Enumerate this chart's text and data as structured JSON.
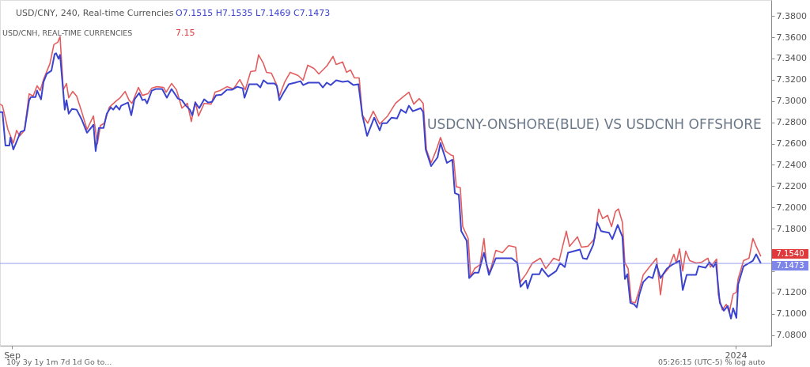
{
  "chart_data": {
    "type": "line",
    "title": "USD/CNY, 240, Real-time Currencies",
    "subtitle": "USD/CNH, REAL-TIME CURRENCIES",
    "annotations": [
      "O7.1515 H7.1535 L7.1469 C7.1473",
      "7.15",
      "USDCNY-ONSHORE(BLUE) VS USDCNH OFFSHORE",
      "10y    3y    1y    1m    7d    1d    Go to...",
      "05:26:15 (UTC-5)     %     log     auto",
      {
        "text": "7.1540",
        "x": "2024-01-05T06:00",
        "y": 7.154
      }
    ],
    "ref_lines": [
      {
        "axis": "y",
        "value": 7.1473,
        "label": "7.1473",
        "color": "#7f86ea"
      }
    ],
    "series": [
      {
        "color": "#e35d5f",
        "x": [
          "2023-08-30T00:00",
          "2023-08-30T10:00",
          "2023-08-31T08:00",
          "2023-09-01T06:00",
          "2023-09-01T19:00",
          "2023-09-02T08:00",
          "2023-09-03T03:00",
          "2023-09-03T22:00",
          "2023-09-04T14:00",
          "2023-09-05T06:00",
          "2023-09-05T19:00",
          "2023-09-06T08:00",
          "2023-09-07T10:00",
          "2023-09-08T02:00",
          "2023-09-08T18:00",
          "2023-09-09T03:00",
          "2023-09-09T16:00",
          "2023-09-10T05:00",
          "2023-09-10T14:00",
          "2023-09-11T06:00",
          "2023-09-11T22:00",
          "2023-09-12T18:00",
          "2023-09-13T16:00",
          "2023-09-14T18:00",
          "2023-09-15T10:00",
          "2023-09-15T22:00",
          "2023-09-16T14:00",
          "2023-09-17T10:00",
          "2023-09-18T14:00",
          "2023-09-19T06:00",
          "2023-09-20T02:00",
          "2023-09-20T18:00",
          "2023-09-21T06:00",
          "2023-09-22T08:00",
          "2023-09-23T00:00",
          "2023-09-23T22:00",
          "2023-09-24T14:00",
          "2023-09-25T10:00",
          "2023-09-26T14:00",
          "2023-09-27T00:00",
          "2023-09-27T22:00",
          "2023-09-28T18:00",
          "2023-09-29T16:00",
          "2023-09-30T14:00",
          "2023-10-01T06:00",
          "2023-10-01T22:00",
          "2023-10-02T11:00",
          "2023-10-03T10:00",
          "2023-10-04T14:00",
          "2023-10-05T06:00",
          "2023-10-06T02:00",
          "2023-10-07T06:00",
          "2023-10-08T08:00",
          "2023-10-09T10:00",
          "2023-10-10T08:00",
          "2023-10-11T06:00",
          "2023-10-12T02:00",
          "2023-10-12T14:00",
          "2023-10-13T10:00",
          "2023-10-13T22:00",
          "2023-10-14T18:00",
          "2023-10-15T13:00",
          "2023-10-16T02:00",
          "2023-10-17T00:00",
          "2023-10-17T22:00",
          "2023-10-19T06:00",
          "2023-10-20T02:00",
          "2023-10-20T21:00",
          "2023-10-21T22:00",
          "2023-10-22T18:00",
          "2023-10-24T02:00",
          "2023-10-25T03:00",
          "2023-10-25T16:00",
          "2023-10-26T18:00",
          "2023-10-27T10:00",
          "2023-10-28T02:00",
          "2023-10-28T18:00",
          "2023-10-29T13:00",
          "2023-10-30T02:00",
          "2023-10-31T00:00",
          "2023-10-31T22:00",
          "2023-11-02T00:00",
          "2023-11-03T08:00",
          "2023-11-04T16:00",
          "2023-11-05T18:00",
          "2023-11-06T22:00",
          "2023-11-07T18:00",
          "2023-11-08T16:00",
          "2023-11-09T08:00",
          "2023-11-09T21:00",
          "2023-11-10T16:00",
          "2023-11-11T14:00",
          "2023-11-12T06:00",
          "2023-11-13T02:00",
          "2023-11-14T00:00",
          "2023-11-14T10:00",
          "2023-11-14T22:00",
          "2023-11-15T14:00",
          "2023-11-16T00:00",
          "2023-11-16T22:00",
          "2023-11-17T08:00",
          "2023-11-18T00:00",
          "2023-11-18T22:00",
          "2023-11-19T14:00",
          "2023-11-20T00:00",
          "2023-11-20T13:00",
          "2023-11-21T14:00",
          "2023-11-22T16:00",
          "2023-11-23T18:00",
          "2023-11-24T22:00",
          "2023-11-25T14:00",
          "2023-11-26T16:00",
          "2023-11-27T18:00",
          "2023-11-29T02:00",
          "2023-11-30T00:00",
          "2023-12-01T08:00",
          "2023-12-02T06:00",
          "2023-12-03T11:00",
          "2023-12-04T00:00",
          "2023-12-05T08:00",
          "2023-12-06T00:00",
          "2023-12-07T02:00",
          "2023-12-08T06:00",
          "2023-12-08T22:00",
          "2023-12-09T14:00",
          "2023-12-10T10:00",
          "2023-12-11T02:00",
          "2023-12-11T18:00",
          "2023-12-12T06:00",
          "2023-12-12T22:00",
          "2023-12-13T08:00",
          "2023-12-13T21:00",
          "2023-12-14T10:00",
          "2023-12-15T02:00",
          "2023-12-15T18:00",
          "2023-12-16T10:00",
          "2023-12-17T14:00",
          "2023-12-18T16:00",
          "2023-12-19T08:00",
          "2023-12-19T18:00",
          "2023-12-20T16:00",
          "2023-12-21T14:00",
          "2023-12-22T00:00",
          "2023-12-22T13:00",
          "2023-12-23T02:00",
          "2023-12-23T14:00",
          "2023-12-24T06:00",
          "2023-12-25T08:00",
          "2023-12-26T06:00",
          "2023-12-27T08:00",
          "2023-12-27T18:00",
          "2023-12-28T19:00",
          "2023-12-29T02:00",
          "2023-12-29T18:00",
          "2023-12-30T10:00",
          "2023-12-30T22:00",
          "2023-12-31T14:00",
          "2024-01-01T03:00",
          "2024-01-01T10:00",
          "2024-01-02T08:00",
          "2024-01-03T06:00",
          "2024-01-03T22:00",
          "2024-01-04T11:00",
          "2024-01-05T06:00"
        ],
        "values": [
          7.2971,
          7.2956,
          7.2732,
          7.2605,
          7.2724,
          7.2672,
          7.2724,
          7.3068,
          7.3046,
          7.3143,
          7.3098,
          7.3202,
          7.3352,
          7.3531,
          7.3553,
          7.3606,
          7.3105,
          7.3165,
          7.3031,
          7.309,
          7.3046,
          7.2904,
          7.2732,
          7.2859,
          7.2598,
          7.2769,
          7.2792,
          7.2941,
          7.3001,
          7.3031,
          7.309,
          7.3008,
          7.2978,
          7.3128,
          7.3053,
          7.3068,
          7.312,
          7.3135,
          7.3128,
          7.3083,
          7.3165,
          7.3105,
          7.2933,
          7.2978,
          7.2807,
          7.2993,
          7.2859,
          7.2978,
          7.2971,
          7.3083,
          7.3098,
          7.3135,
          7.3113,
          7.3202,
          7.3105,
          7.3277,
          7.3285,
          7.3434,
          7.3352,
          7.327,
          7.3262,
          7.3165,
          7.3046,
          7.318,
          7.327,
          7.324,
          7.3195,
          7.3337,
          7.3307,
          7.3255,
          7.3329,
          7.3419,
          7.3344,
          7.3367,
          7.327,
          7.3292,
          7.3217,
          7.3217,
          7.2866,
          7.2792,
          7.2904,
          7.2784,
          7.2859,
          7.2978,
          7.3031,
          7.3083,
          7.2971,
          7.3023,
          7.2978,
          7.2545,
          7.2418,
          7.2545,
          7.2657,
          7.253,
          7.2493,
          7.2485,
          7.2194,
          7.2186,
          7.182,
          7.1708,
          7.135,
          7.1425,
          7.1462,
          7.1708,
          7.1462,
          7.1387,
          7.1596,
          7.1574,
          7.1641,
          7.1626,
          7.129,
          7.1372,
          7.1477,
          7.1522,
          7.1425,
          7.1522,
          7.1499,
          7.1776,
          7.1634,
          7.1723,
          7.1626,
          7.1634,
          7.1708,
          7.1985,
          7.1895,
          7.1925,
          7.182,
          7.1962,
          7.1985,
          7.1858,
          7.1477,
          7.1425,
          7.1111,
          7.1103,
          7.1223,
          7.1365,
          7.1447,
          7.1522,
          7.1178,
          7.1365,
          7.1425,
          7.1559,
          7.1477,
          7.1611,
          7.1402,
          7.1589,
          7.1499,
          7.1477,
          7.1484,
          7.1522,
          7.1439,
          7.1514,
          7.1178,
          7.1037,
          7.1088,
          7.1014,
          7.1186,
          7.1201,
          7.1327,
          7.1499,
          7.1522,
          7.1708,
          7.1634,
          7.154
        ]
      },
      {
        "color": "#3b44cf",
        "x": [
          "2023-08-30T00:00",
          "2023-08-30T10:00",
          "2023-08-30T22:00",
          "2023-08-31T14:00",
          "2023-08-31T18:00",
          "2023-09-01T06:00",
          "2023-09-01T22:00",
          "2023-09-02T11:00",
          "2023-09-03T03:00",
          "2023-09-03T22:00",
          "2023-09-04T05:00",
          "2023-09-05T00:00",
          "2023-09-05T06:00",
          "2023-09-05T22:00",
          "2023-09-06T08:00",
          "2023-09-06T21:00",
          "2023-09-07T16:00",
          "2023-09-08T05:00",
          "2023-09-08T11:00",
          "2023-09-08T21:00",
          "2023-09-09T03:00",
          "2023-09-09T22:00",
          "2023-09-10T05:00",
          "2023-09-10T14:00",
          "2023-09-11T03:00",
          "2023-09-11T22:00",
          "2023-09-12T18:00",
          "2023-09-13T16:00",
          "2023-09-14T08:00",
          "2023-09-14T18:00",
          "2023-09-15T03:00",
          "2023-09-15T16:00",
          "2023-09-16T11:00",
          "2023-09-17T00:00",
          "2023-09-17T16:00",
          "2023-09-18T02:00",
          "2023-09-18T14:00",
          "2023-09-19T03:00",
          "2023-09-19T10:00",
          "2023-09-20T14:00",
          "2023-09-21T03:00",
          "2023-09-21T16:00",
          "2023-09-22T11:00",
          "2023-09-23T00:00",
          "2023-09-23T10:00",
          "2023-09-23T19:00",
          "2023-09-24T14:00",
          "2023-09-25T06:00",
          "2023-09-26T08:00",
          "2023-09-27T03:00",
          "2023-09-27T22:00",
          "2023-09-29T00:00",
          "2023-09-29T16:00",
          "2023-09-30T08:00",
          "2023-10-01T00:00",
          "2023-10-01T10:00",
          "2023-10-01T22:00",
          "2023-10-02T14:00",
          "2023-10-03T10:00",
          "2023-10-04T02:00",
          "2023-10-04T18:00",
          "2023-10-05T10:00",
          "2023-10-06T08:00",
          "2023-10-07T06:00",
          "2023-10-08T02:00",
          "2023-10-09T00:00",
          "2023-10-09T22:00",
          "2023-10-10T05:00",
          "2023-10-11T00:00",
          "2023-10-12T08:00",
          "2023-10-12T21:00",
          "2023-10-13T10:00",
          "2023-10-14T02:00",
          "2023-10-15T06:00",
          "2023-10-15T16:00",
          "2023-10-16T02:00",
          "2023-10-16T18:00",
          "2023-10-17T16:00",
          "2023-10-18T18:00",
          "2023-10-19T16:00",
          "2023-10-20T02:00",
          "2023-10-21T00:00",
          "2023-10-22T18:00",
          "2023-10-23T10:00",
          "2023-10-24T02:00",
          "2023-10-24T18:00",
          "2023-10-25T16:00",
          "2023-10-26T18:00",
          "2023-10-27T16:00",
          "2023-10-28T14:00",
          "2023-10-29T10:00",
          "2023-10-30T02:00",
          "2023-10-30T21:00",
          "2023-11-01T02:00",
          "2023-11-02T00:00",
          "2023-11-02T10:00",
          "2023-11-03T05:00",
          "2023-11-04T00:00",
          "2023-11-04T22:00",
          "2023-11-05T14:00",
          "2023-11-06T10:00",
          "2023-11-06T22:00",
          "2023-11-07T14:00",
          "2023-11-08T22:00",
          "2023-11-09T08:00",
          "2023-11-09T18:00",
          "2023-11-10T16:00",
          "2023-11-11T18:00",
          "2023-11-12T06:00",
          "2023-11-13T08:00",
          "2023-11-14T06:00",
          "2023-11-14T16:00",
          "2023-11-15T08:00",
          "2023-11-15T18:00",
          "2023-11-16T16:00",
          "2023-11-17T02:00",
          "2023-11-18T00:00",
          "2023-11-18T16:00",
          "2023-11-19T14:00",
          "2023-11-20T10:00",
          "2023-11-21T14:00",
          "2023-11-22T10:00",
          "2023-11-24T06:00",
          "2023-11-25T05:00",
          "2023-11-25T18:00",
          "2023-11-26T16:00",
          "2023-11-26T22:00",
          "2023-11-27T18:00",
          "2023-11-28T22:00",
          "2023-11-29T08:00",
          "2023-11-30T10:00",
          "2023-12-01T18:00",
          "2023-12-02T10:00",
          "2023-12-03T05:00",
          "2023-12-03T18:00",
          "2023-12-05T18:00",
          "2023-12-06T06:00",
          "2023-12-06T22:00",
          "2023-12-08T00:00",
          "2023-12-08T16:00",
          "2023-12-09T08:00",
          "2023-12-10T16:00",
          "2023-12-11T05:00",
          "2023-12-12T03:00",
          "2023-12-12T22:00",
          "2023-12-13T08:00",
          "2023-12-13T18:00",
          "2023-12-14T06:00",
          "2023-12-14T22:00",
          "2023-12-15T08:00",
          "2023-12-15T18:00",
          "2023-12-16T10:00",
          "2023-12-17T08:00",
          "2023-12-18T00:00",
          "2023-12-18T16:00",
          "2023-12-19T08:00",
          "2023-12-20T10:00",
          "2023-12-21T08:00",
          "2023-12-22T13:00",
          "2023-12-23T02:00",
          "2023-12-23T18:00",
          "2023-12-25T08:00",
          "2023-12-25T18:00",
          "2023-12-26T22:00",
          "2023-12-27T14:00",
          "2023-12-28T06:00",
          "2023-12-28T16:00",
          "2023-12-29T08:00",
          "2023-12-30T00:00",
          "2023-12-30T16:00",
          "2023-12-31T05:00",
          "2023-12-31T14:00",
          "2024-01-01T03:00",
          "2024-01-01T10:00",
          "2024-01-02T08:00",
          "2024-01-03T06:00",
          "2024-01-03T22:00",
          "2024-01-04T11:00",
          "2024-01-05T06:00"
        ],
        "values": [
          7.2896,
          7.2896,
          7.2582,
          7.2582,
          7.2657,
          7.2545,
          7.2635,
          7.2709,
          7.2724,
          7.3008,
          7.3038,
          7.3038,
          7.3098,
          7.3016,
          7.318,
          7.3255,
          7.3285,
          7.3441,
          7.3449,
          7.3397,
          7.3434,
          7.2919,
          7.3008,
          7.2881,
          7.2926,
          7.2919,
          7.2829,
          7.2702,
          7.2747,
          7.2777,
          7.253,
          7.2747,
          7.2747,
          7.2881,
          7.2941,
          7.2919,
          7.2956,
          7.2919,
          7.2956,
          7.2986,
          7.2866,
          7.3016,
          7.3075,
          7.3008,
          7.3016,
          7.2978,
          7.3098,
          7.3113,
          7.3113,
          7.3031,
          7.3113,
          7.3023,
          7.3008,
          7.2956,
          7.2919,
          7.2866,
          7.2986,
          7.2933,
          7.3016,
          7.2986,
          7.2993,
          7.3053,
          7.306,
          7.3105,
          7.3105,
          7.3135,
          7.312,
          7.3031,
          7.3158,
          7.3158,
          7.3128,
          7.3195,
          7.3165,
          7.3165,
          7.3143,
          7.3008,
          7.3075,
          7.3158,
          7.3173,
          7.3187,
          7.315,
          7.3173,
          7.3173,
          7.3128,
          7.3173,
          7.315,
          7.3195,
          7.318,
          7.3187,
          7.315,
          7.3158,
          7.2866,
          7.2672,
          7.2844,
          7.2724,
          7.2792,
          7.2792,
          7.2844,
          7.2836,
          7.2919,
          7.2889,
          7.2956,
          7.2904,
          7.2933,
          7.2896,
          7.2545,
          7.2388,
          7.247,
          7.2605,
          7.2418,
          7.2448,
          7.2134,
          7.2119,
          7.1776,
          7.1686,
          7.1335,
          7.1387,
          7.1387,
          7.1574,
          7.1365,
          7.1522,
          7.1522,
          7.1522,
          7.1477,
          7.1253,
          7.1312,
          7.1238,
          7.1372,
          7.1372,
          7.1425,
          7.135,
          7.1402,
          7.1477,
          7.1439,
          7.1574,
          7.1604,
          7.1522,
          7.1514,
          7.1649,
          7.1858,
          7.1776,
          7.1761,
          7.1701,
          7.1835,
          7.1723,
          7.1327,
          7.1372,
          7.1103,
          7.1088,
          7.1059,
          7.1178,
          7.1298,
          7.135,
          7.1335,
          7.1462,
          7.1335,
          7.1425,
          7.1462,
          7.1499,
          7.1223,
          7.1365,
          7.1365,
          7.1447,
          7.1432,
          7.1484,
          7.1439,
          7.1484,
          7.1103,
          7.1029,
          7.1073,
          7.0954,
          7.1051,
          7.0961,
          7.1275,
          7.1447,
          7.1477,
          7.1499,
          7.1559,
          7.1473
        ]
      }
    ],
    "xlim": [
      "2023-08-30T00:00",
      "2024-01-07T00:00"
    ],
    "xticks": [
      {
        "value": "2023-09-01T00:00",
        "label": "Sep"
      },
      {
        "value": "2024-01-01T00:00",
        "label": "2024"
      }
    ],
    "ylim": [
      7.07,
      7.395
    ],
    "yticks": [
      {
        "value": 7.08,
        "label": "7.0800"
      },
      {
        "value": 7.1,
        "label": "7.1000"
      },
      {
        "value": 7.12,
        "label": "7.1200"
      },
      {
        "value": 7.14,
        "label": null
      },
      {
        "value": 7.16,
        "label": null
      },
      {
        "value": 7.18,
        "label": "7.1800"
      },
      {
        "value": 7.2,
        "label": "7.2000"
      },
      {
        "value": 7.22,
        "label": "7.2200"
      },
      {
        "value": 7.24,
        "label": "7.2400"
      },
      {
        "value": 7.26,
        "label": "7.2600"
      },
      {
        "value": 7.28,
        "label": "7.2800"
      },
      {
        "value": 7.3,
        "label": "7.3000"
      },
      {
        "value": 7.32,
        "label": "7.3200"
      },
      {
        "value": 7.34,
        "label": "7.3400"
      },
      {
        "value": 7.36,
        "label": "7.3600"
      },
      {
        "value": 7.38,
        "label": "7.3800"
      }
    ],
    "marker": "none",
    "line_style": "solid"
  }
}
